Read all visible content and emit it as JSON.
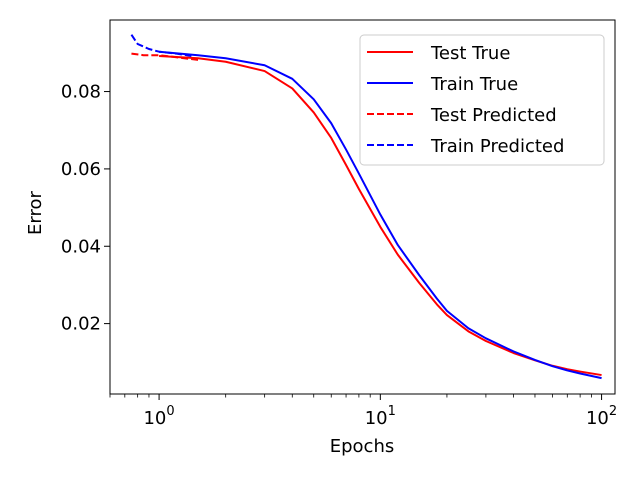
{
  "chart_data": {
    "type": "line",
    "xlabel": "Epochs",
    "ylabel": "Error",
    "xscale": "log",
    "xlim": [
      0.6,
      115
    ],
    "ylim": [
      0.0018,
      0.0985
    ],
    "x_ticks": [
      {
        "value": 1,
        "label_base": "10",
        "label_exp": "0"
      },
      {
        "value": 10,
        "label_base": "10",
        "label_exp": "1"
      },
      {
        "value": 100,
        "label_base": "10",
        "label_exp": "2"
      }
    ],
    "y_ticks": [
      {
        "value": 0.02,
        "label": "0.02"
      },
      {
        "value": 0.04,
        "label": "0.04"
      },
      {
        "value": 0.06,
        "label": "0.06"
      },
      {
        "value": 0.08,
        "label": "0.08"
      }
    ],
    "grid": false,
    "legend_position": "top-right",
    "series": [
      {
        "name": "Test True",
        "color": "#ff0000",
        "dash": "solid",
        "x": [
          1,
          1.5,
          2,
          3,
          4,
          5,
          6,
          7,
          8,
          10,
          12,
          15,
          18,
          20,
          25,
          30,
          40,
          50,
          60,
          70,
          80,
          100
        ],
        "y": [
          0.0892,
          0.0886,
          0.0877,
          0.0853,
          0.0808,
          0.0746,
          0.068,
          0.061,
          0.0548,
          0.045,
          0.0378,
          0.0305,
          0.025,
          0.0222,
          0.018,
          0.0155,
          0.0124,
          0.0105,
          0.0091,
          0.0082,
          0.0076,
          0.0067
        ]
      },
      {
        "name": "Train True",
        "color": "#0000ff",
        "dash": "solid",
        "x": [
          1,
          1.5,
          2,
          3,
          4,
          5,
          6,
          7,
          8,
          10,
          12,
          15,
          18,
          20,
          25,
          30,
          40,
          50,
          60,
          70,
          80,
          100
        ],
        "y": [
          0.0903,
          0.0894,
          0.0886,
          0.0868,
          0.0833,
          0.078,
          0.0718,
          0.065,
          0.0588,
          0.0482,
          0.0403,
          0.0325,
          0.0265,
          0.0233,
          0.0188,
          0.0162,
          0.0128,
          0.0106,
          0.009,
          0.0079,
          0.0071,
          0.0059
        ]
      },
      {
        "name": "Test Predicted",
        "color": "#ff0000",
        "dash": "dashed",
        "x": [
          0.75,
          0.85,
          1.0,
          1.15,
          1.3,
          1.5
        ],
        "y": [
          0.0898,
          0.0894,
          0.0894,
          0.089,
          0.0886,
          0.0882
        ]
      },
      {
        "name": "Train Predicted",
        "color": "#0000ff",
        "dash": "dashed",
        "x": [
          0.75,
          0.8,
          0.9,
          1.0,
          1.2,
          1.4
        ],
        "y": [
          0.0947,
          0.0923,
          0.091,
          0.0903,
          0.0898,
          0.0892
        ]
      }
    ]
  }
}
